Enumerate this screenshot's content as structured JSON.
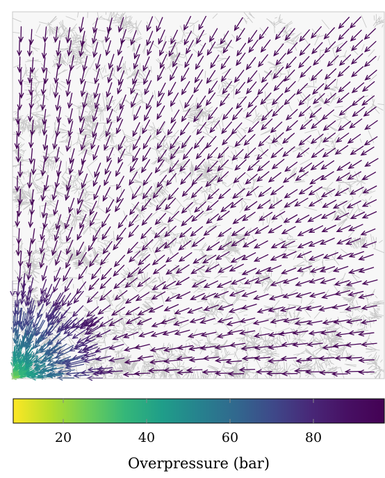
{
  "chart_data": {
    "type": "quiver",
    "title": "",
    "xlabel": "",
    "ylabel": "",
    "plot": {
      "background": "#f7f7f7",
      "cell_edge_color": "#c8c8c8",
      "mesh": "voronoi cells over unit square",
      "arrow_field": "radial flow toward lower-left corner",
      "sink_location": "bottom-left"
    },
    "pressure_range": [
      8,
      97
    ],
    "colorbar": {
      "label": "Overpressure (bar)",
      "orientation": "horizontal",
      "placement": "bottom",
      "colormap": "viridis",
      "range": [
        8,
        97
      ],
      "ticks": [
        20,
        40,
        60,
        80
      ],
      "tick_labels": [
        "20",
        "40",
        "60",
        "80"
      ]
    }
  }
}
